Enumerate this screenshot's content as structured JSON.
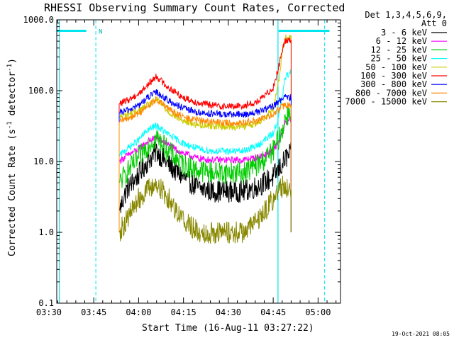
{
  "chart_data": {
    "type": "line",
    "title": "RHESSI Observing Summary Count Rates, Corrected",
    "xlabel": "Start Time (16-Aug-11 03:27:22)",
    "ylabel_prefix": "Corrected Count Rate (s",
    "ylabel_sup": "-1",
    "ylabel_mid": " detector",
    "ylabel_suffix": ")",
    "y_scale": "log",
    "ylim": [
      0.1,
      1000
    ],
    "xlim_minutes": [
      -27.37,
      67.5
    ],
    "x_ticks": [
      {
        "label": "03:30",
        "t": -30
      },
      {
        "label": "03:45",
        "t": -15
      },
      {
        "label": "04:00",
        "t": 0
      },
      {
        "label": "04:15",
        "t": 15
      },
      {
        "label": "04:30",
        "t": 30
      },
      {
        "label": "04:45",
        "t": 45
      },
      {
        "label": "05:00",
        "t": 60
      }
    ],
    "y_ticks": [
      {
        "label": "0.1",
        "v": 0.1
      },
      {
        "label": "1.0",
        "v": 1
      },
      {
        "label": "10.0",
        "v": 10
      },
      {
        "label": "100.0",
        "v": 100
      },
      {
        "label": "1000.0",
        "v": 1000
      }
    ],
    "legend_header": [
      "Det 1,3,4,5,6,9,",
      "Att 0"
    ],
    "legend_position": "right",
    "series": [
      {
        "name": "3 - 6 keV",
        "color": "#000000",
        "t": [
          -6.5,
          -4,
          0,
          3,
          6,
          10,
          15,
          20,
          25,
          30,
          35,
          40,
          45,
          47,
          48,
          49,
          51
        ],
        "values": [
          2,
          4,
          6.5,
          10,
          14,
          9,
          6,
          4.2,
          3.8,
          3.8,
          3.8,
          4.5,
          6,
          8,
          9,
          11,
          13
        ]
      },
      {
        "name": "6 - 12 keV",
        "color": "#ff00ff",
        "t": [
          -6.5,
          -4,
          0,
          3,
          6,
          10,
          15,
          20,
          25,
          30,
          35,
          40,
          45,
          47,
          48,
          49,
          51
        ],
        "values": [
          10,
          12,
          15,
          19,
          22,
          17,
          13,
          11,
          10.5,
          10.5,
          10.5,
          11.5,
          14,
          20,
          25,
          35,
          40
        ]
      },
      {
        "name": "12 - 25 keV",
        "color": "#00cc00",
        "t": [
          -6.5,
          -4,
          0,
          3,
          6,
          10,
          15,
          20,
          25,
          30,
          35,
          40,
          45,
          47,
          48,
          49,
          51
        ],
        "values": [
          5,
          7,
          11,
          17,
          22,
          14,
          9,
          7.5,
          7,
          7,
          7,
          9,
          14,
          22,
          28,
          40,
          55
        ]
      },
      {
        "name": "25 - 50 keV",
        "color": "#00ffff",
        "t": [
          -6.5,
          -4,
          0,
          3,
          6,
          10,
          15,
          20,
          25,
          30,
          35,
          40,
          45,
          47,
          48,
          49,
          51
        ],
        "values": [
          12,
          15,
          20,
          28,
          32,
          24,
          18,
          15,
          14,
          14,
          14,
          17,
          25,
          45,
          80,
          150,
          190
        ]
      },
      {
        "name": "50 - 100 keV",
        "color": "#cccc00",
        "t": [
          -6.5,
          -4,
          0,
          3,
          6,
          10,
          15,
          20,
          25,
          30,
          35,
          40,
          45,
          47,
          48,
          49,
          51
        ],
        "values": [
          42,
          46,
          52,
          62,
          75,
          50,
          37,
          33,
          32,
          31,
          31,
          35,
          55,
          150,
          350,
          550,
          600
        ]
      },
      {
        "name": "100 - 300 keV",
        "color": "#ff0000",
        "t": [
          -6.5,
          -4,
          0,
          3,
          6,
          10,
          15,
          20,
          25,
          30,
          35,
          40,
          45,
          47,
          48,
          49,
          51
        ],
        "values": [
          65,
          72,
          90,
          120,
          160,
          110,
          80,
          67,
          62,
          60,
          61,
          70,
          110,
          230,
          380,
          500,
          520
        ]
      },
      {
        "name": "300 - 800 keV",
        "color": "#0000ff",
        "t": [
          -6.5,
          -4,
          0,
          3,
          6,
          10,
          15,
          20,
          25,
          30,
          35,
          40,
          45,
          47,
          48,
          49,
          51
        ],
        "values": [
          48,
          52,
          62,
          80,
          95,
          72,
          56,
          49,
          47,
          46,
          46,
          50,
          60,
          72,
          78,
          80,
          80
        ]
      },
      {
        "name": "800 - 7000 keV",
        "color": "#ff8800",
        "t": [
          -6.5,
          -4,
          0,
          3,
          6,
          10,
          15,
          20,
          25,
          30,
          35,
          40,
          45,
          47,
          48,
          49,
          51
        ],
        "values": [
          36,
          40,
          48,
          60,
          75,
          55,
          42,
          38,
          36,
          35,
          35,
          38,
          46,
          55,
          60,
          62,
          62
        ]
      },
      {
        "name": "7000 - 15000 keV",
        "color": "#888800",
        "t": [
          -6.5,
          -4,
          0,
          3,
          6,
          10,
          15,
          20,
          25,
          30,
          35,
          40,
          45,
          47,
          48,
          49,
          51
        ],
        "values": [
          1,
          1.5,
          3,
          4,
          4.8,
          3,
          1.5,
          1,
          1,
          1,
          1,
          1.5,
          3,
          4,
          4.5,
          4.5,
          4
        ]
      }
    ],
    "markers": {
      "cyan_solid_lines_t": [
        -26.5,
        46.6
      ],
      "cyan_dashed_lines_t": [
        -14.3,
        62.2
      ],
      "saturation_bars": [
        {
          "t_start": -27.4,
          "t_end": -17.5,
          "v": 700
        },
        {
          "t_start": 46.8,
          "t_end": 63.8,
          "v": 700
        }
      ],
      "flag_label": "N",
      "flag_t": -14.1
    },
    "footer_date": "19-Oct-2021 08:05"
  }
}
